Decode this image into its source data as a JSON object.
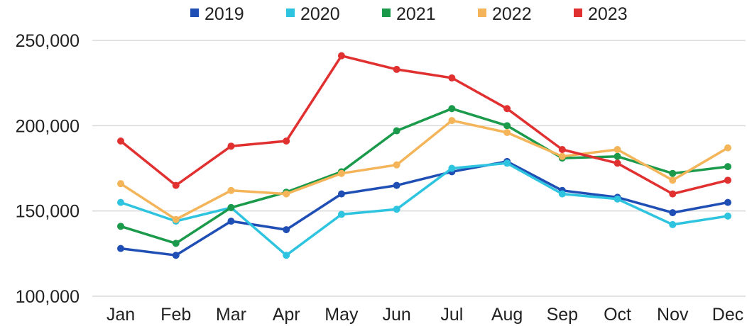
{
  "chart_data": {
    "type": "line",
    "title": "",
    "xlabel": "",
    "ylabel": "",
    "categories": [
      "Jan",
      "Feb",
      "Mar",
      "Apr",
      "May",
      "Jun",
      "Jul",
      "Aug",
      "Sep",
      "Oct",
      "Nov",
      "Dec"
    ],
    "ylim": [
      100000,
      250000
    ],
    "yticks": [
      100000,
      150000,
      200000,
      250000
    ],
    "ytick_labels": [
      "100,000",
      "150,000",
      "200,000",
      "250,000"
    ],
    "grid": "horizontal",
    "legend_position": "top",
    "series": [
      {
        "name": "2019",
        "color": "#1f4eb4",
        "values": [
          128000,
          124000,
          144000,
          139000,
          160000,
          165000,
          173000,
          179000,
          162000,
          158000,
          149000,
          155000
        ]
      },
      {
        "name": "2020",
        "color": "#2ec4e0",
        "values": [
          155000,
          144000,
          152000,
          124000,
          148000,
          151000,
          175000,
          178000,
          160000,
          157000,
          142000,
          147000
        ]
      },
      {
        "name": "2021",
        "color": "#1a9a4a",
        "values": [
          141000,
          131000,
          152000,
          161000,
          173000,
          197000,
          210000,
          200000,
          181000,
          182000,
          172000,
          176000
        ]
      },
      {
        "name": "2022",
        "color": "#f4b55a",
        "values": [
          166000,
          145000,
          162000,
          160000,
          172000,
          177000,
          203000,
          196000,
          182000,
          186000,
          168000,
          187000
        ]
      },
      {
        "name": "2023",
        "color": "#e03030",
        "values": [
          191000,
          165000,
          188000,
          191000,
          241000,
          233000,
          228000,
          210000,
          186000,
          178000,
          160000,
          168000
        ]
      }
    ]
  }
}
